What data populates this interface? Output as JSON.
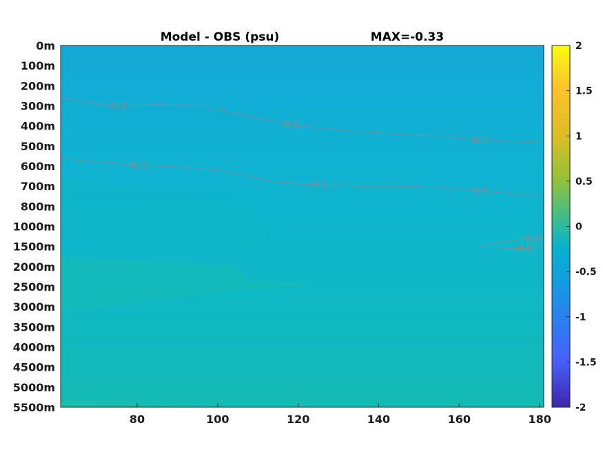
{
  "chart_data": {
    "type": "heatmap",
    "title_left": "Model - OBS (psu)",
    "title_right": "MAX=-0.33",
    "xlabel": "",
    "ylabel": "",
    "xlim": [
      61,
      181
    ],
    "x_ticks": [
      80,
      100,
      120,
      140,
      160,
      180
    ],
    "y_ticks": [
      "0m",
      "100m",
      "200m",
      "300m",
      "400m",
      "500m",
      "600m",
      "700m",
      "800m",
      "1000m",
      "1500m",
      "2000m",
      "2500m",
      "3000m",
      "3500m",
      "4000m",
      "4500m",
      "5000m",
      "5500m"
    ],
    "colorbar": {
      "range": [
        -2,
        2
      ],
      "ticks": [
        "2",
        "1.5",
        "1",
        "0.5",
        "0",
        "-0.5",
        "-1",
        "-1.5",
        "-2"
      ],
      "colormap": "parula"
    },
    "contours": [
      {
        "label": "-0.2",
        "points": [
          [
            61,
            2.6
          ],
          [
            67,
            2.8
          ],
          [
            75,
            3.0
          ],
          [
            85,
            2.9
          ],
          [
            95,
            3.0
          ],
          [
            103,
            3.3
          ],
          [
            110,
            3.6
          ],
          [
            118,
            3.9
          ],
          [
            125,
            4.1
          ],
          [
            135,
            4.3
          ],
          [
            145,
            4.4
          ],
          [
            155,
            4.5
          ],
          [
            165,
            4.7
          ],
          [
            175,
            4.8
          ],
          [
            180,
            4.8
          ]
        ]
      },
      {
        "label": "-0.1",
        "points": [
          [
            61,
            5.6
          ],
          [
            70,
            5.8
          ],
          [
            80,
            5.95
          ],
          [
            90,
            6.0
          ],
          [
            100,
            6.2
          ],
          [
            108,
            6.5
          ],
          [
            115,
            6.8
          ],
          [
            125,
            6.9
          ],
          [
            135,
            7.0
          ],
          [
            145,
            7.0
          ],
          [
            155,
            7.05
          ],
          [
            165,
            7.2
          ],
          [
            175,
            7.4
          ],
          [
            180,
            7.4
          ]
        ]
      },
      {
        "label": "-0.1",
        "points": [
          [
            165,
            10.0
          ],
          [
            172,
            9.7
          ],
          [
            178,
            9.6
          ],
          [
            181,
            9.6
          ]
        ]
      },
      {
        "label": "-0.2",
        "points": [
          [
            170,
            10.1
          ],
          [
            176,
            10.1
          ],
          [
            181,
            10.05
          ]
        ]
      }
    ],
    "contour_labels": [
      "-0.2",
      "-0.1",
      "-0.1",
      "-0.2"
    ],
    "field_colors": {
      "surface": "#14a8d6",
      "upper": "#11afd4",
      "mid": "#0db6cb",
      "deep": "#18bbb6",
      "bottom": "#1bbcaf"
    }
  }
}
